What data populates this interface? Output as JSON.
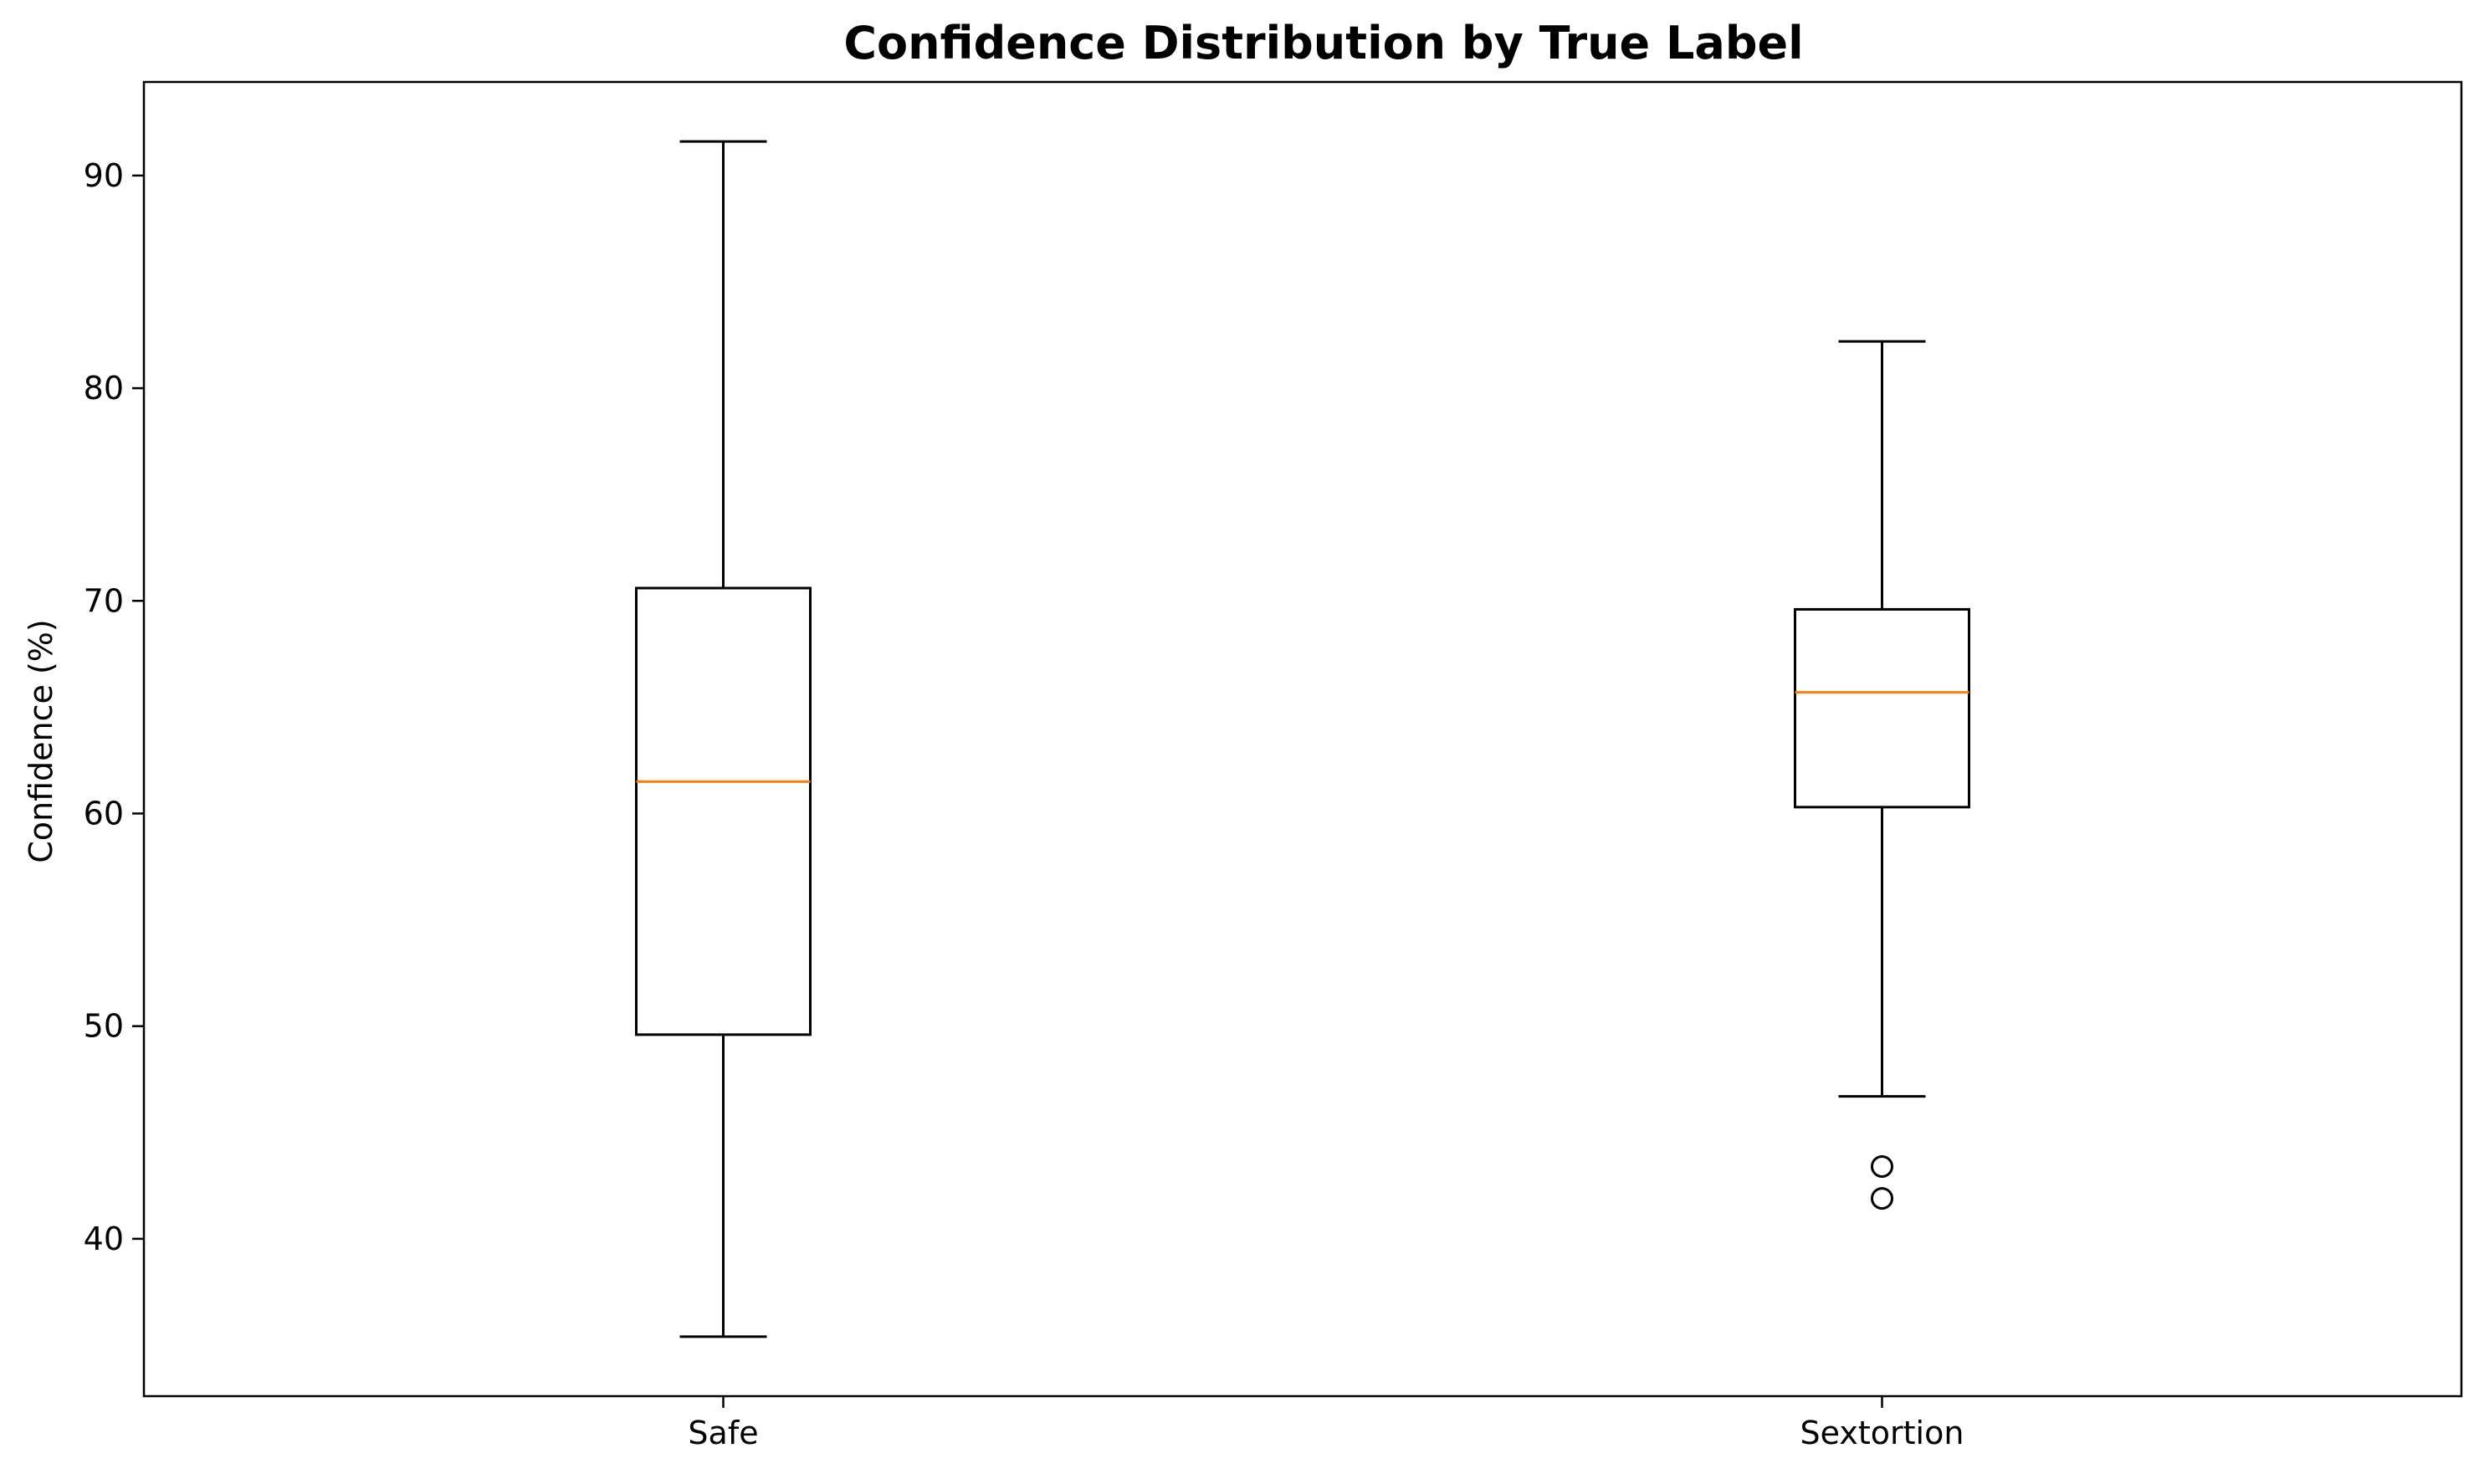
{
  "chart_data": {
    "type": "box",
    "title": "Confidence Distribution by True Label",
    "xlabel": "",
    "ylabel": "Confidence (%)",
    "ylim": [
      32.6,
      94.4
    ],
    "yticks": [
      40,
      50,
      60,
      70,
      80,
      90
    ],
    "categories": [
      "Safe",
      "Sextortion"
    ],
    "boxes": [
      {
        "category": "Safe",
        "whisker_low": 35.4,
        "q1": 49.6,
        "median": 61.5,
        "q3": 70.6,
        "whisker_high": 91.6,
        "outliers": []
      },
      {
        "category": "Sextortion",
        "whisker_low": 46.7,
        "q1": 60.3,
        "median": 65.7,
        "q3": 69.6,
        "whisker_high": 82.2,
        "outliers": [
          43.4,
          41.9
        ]
      }
    ],
    "grid": false,
    "legend": "none",
    "colors": {
      "box": "#000000",
      "median": "#ff7f0e",
      "outlier": "#000000"
    }
  }
}
